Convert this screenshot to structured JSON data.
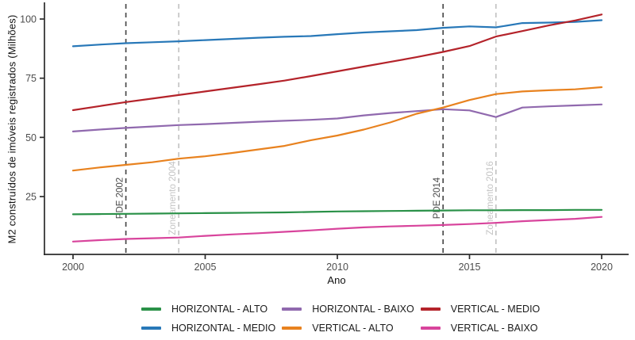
{
  "y_axis_title": "M2 construídos de imóveis registrados (Milhões)",
  "x_axis_title": "Ano",
  "chart_data": {
    "type": "line",
    "title": "",
    "xlabel": "Ano",
    "ylabel": "M2 construídos de imóveis registrados (Milhões)",
    "grid": false,
    "legend_position": "bottom",
    "xlim": [
      1999,
      2021
    ],
    "ylim": [
      0,
      107
    ],
    "x_ticks": [
      2000,
      2005,
      2010,
      2015,
      2020
    ],
    "y_ticks": [
      25,
      50,
      75,
      100
    ],
    "x": [
      2000,
      2001,
      2002,
      2003,
      2004,
      2005,
      2006,
      2007,
      2008,
      2009,
      2010,
      2011,
      2012,
      2013,
      2014,
      2015,
      2016,
      2017,
      2018,
      2019,
      2020
    ],
    "series": [
      {
        "name": "HORIZONTAL - ALTO",
        "color": "#2a9148",
        "values": [
          17.5,
          17.6,
          17.7,
          17.8,
          17.9,
          18.0,
          18.1,
          18.2,
          18.3,
          18.5,
          18.7,
          18.8,
          18.9,
          19.0,
          19.1,
          19.2,
          19.2,
          19.3,
          19.3,
          19.4,
          19.4
        ]
      },
      {
        "name": "HORIZONTAL - MEDIO",
        "color": "#2878b8",
        "values": [
          88.5,
          89.2,
          89.8,
          90.2,
          90.6,
          91.1,
          91.6,
          92.1,
          92.5,
          92.8,
          93.6,
          94.3,
          94.8,
          95.3,
          96.3,
          96.9,
          96.5,
          98.3,
          98.5,
          98.8,
          99.5
        ]
      },
      {
        "name": "HORIZONTAL - BAIXO",
        "color": "#9069ae",
        "values": [
          52.5,
          53.3,
          54.0,
          54.6,
          55.2,
          55.6,
          56.1,
          56.6,
          57.0,
          57.4,
          58.0,
          59.3,
          60.3,
          61.1,
          61.9,
          61.4,
          58.6,
          62.6,
          63.1,
          63.5,
          63.9
        ]
      },
      {
        "name": "VERTICAL - ALTO",
        "color": "#e8821f",
        "values": [
          36.0,
          37.3,
          38.4,
          39.5,
          41.0,
          42.0,
          43.4,
          44.9,
          46.4,
          48.8,
          50.8,
          53.3,
          56.3,
          60.0,
          62.6,
          65.8,
          68.3,
          69.4,
          69.9,
          70.3,
          71.2
        ]
      },
      {
        "name": "VERTICAL - MEDIO",
        "color": "#b4232a",
        "values": [
          61.5,
          63.2,
          64.9,
          66.4,
          67.9,
          69.4,
          70.9,
          72.4,
          74.0,
          75.9,
          77.9,
          79.9,
          81.9,
          83.9,
          86.1,
          88.6,
          92.6,
          94.9,
          97.3,
          99.4,
          101.9
        ]
      },
      {
        "name": "VERTICAL - BAIXO",
        "color": "#d8449c",
        "values": [
          6.0,
          6.6,
          7.1,
          7.4,
          7.7,
          8.4,
          9.0,
          9.5,
          10.1,
          10.7,
          11.4,
          12.0,
          12.4,
          12.7,
          13.0,
          13.4,
          13.9,
          14.6,
          15.1,
          15.6,
          16.4
        ]
      }
    ],
    "events": [
      {
        "year": 2002,
        "label": "PDE 2002",
        "color": "#4a4a4a"
      },
      {
        "year": 2004,
        "label": "Zoneamento 2004",
        "color": "#c4c4c4"
      },
      {
        "year": 2014,
        "label": "PDE 2014",
        "color": "#4a4a4a"
      },
      {
        "year": 2016,
        "label": "Zoneamento 2016",
        "color": "#c4c4c4"
      }
    ]
  }
}
